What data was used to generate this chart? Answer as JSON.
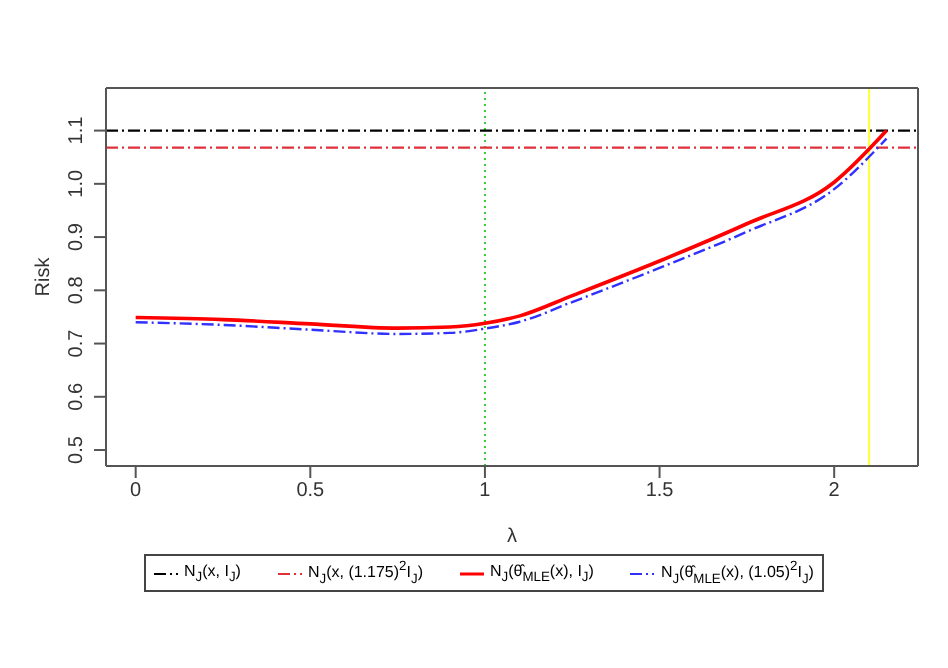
{
  "chart_data": {
    "type": "line",
    "xlabel": "λ",
    "ylabel": "Risk",
    "xlim": [
      -0.085,
      2.24
    ],
    "ylim": [
      0.47,
      1.18
    ],
    "xticks": [
      0,
      0.5,
      1,
      1.5,
      2
    ],
    "yticks": [
      0.5,
      0.6,
      0.7,
      0.8,
      0.9,
      {
        "value": 1,
        "label": "1.0"
      },
      1.1
    ],
    "legend": "bottom",
    "marker": "none",
    "series": [
      {
        "name": "N$_{J}$(x, I$_{J}$)",
        "color": "#000000",
        "line_style": "dashed",
        "x": [
          -0.085,
          2.24
        ],
        "values": [
          1.1,
          1.1
        ]
      },
      {
        "name": "N$_{J}$(x, (1.175)$^{2}$I$_{J}$)",
        "color": "#e0303a",
        "line_style": "dashed",
        "x": [
          -0.085,
          2.24
        ],
        "values": [
          1.068,
          1.068
        ]
      },
      {
        "name": "N$_{J}$(θ̂$_{MLE}$(x), I$_{J}$)",
        "color": "#ff0000",
        "line_style": "solid",
        "x": [
          0,
          0.25,
          0.5,
          0.75,
          0.9,
          1.0,
          1.1,
          1.25,
          1.5,
          1.75,
          2.0,
          2.15
        ],
        "values": [
          0.749,
          0.745,
          0.737,
          0.729,
          0.731,
          0.738,
          0.752,
          0.79,
          0.855,
          0.925,
          1.003,
          1.1
        ]
      },
      {
        "name": "N$_{J}$(θ̂$_{MLE}$(x), (1.05)$^{2}$I$_{J}$)",
        "color": "#3030ff",
        "line_style": "dashed",
        "x": [
          0,
          0.25,
          0.5,
          0.75,
          0.9,
          1.0,
          1.1,
          1.25,
          1.5,
          1.75,
          2.0,
          2.15
        ],
        "values": [
          0.74,
          0.735,
          0.726,
          0.718,
          0.72,
          0.728,
          0.741,
          0.778,
          0.842,
          0.91,
          0.99,
          1.085
        ]
      }
    ],
    "ref_lines": [
      {
        "axis": "x",
        "value": 1,
        "color": "#33cc33",
        "line_style": "dotted"
      },
      {
        "axis": "x",
        "value": 2.1,
        "color": "#ffff33",
        "line_style": "solid"
      }
    ]
  }
}
